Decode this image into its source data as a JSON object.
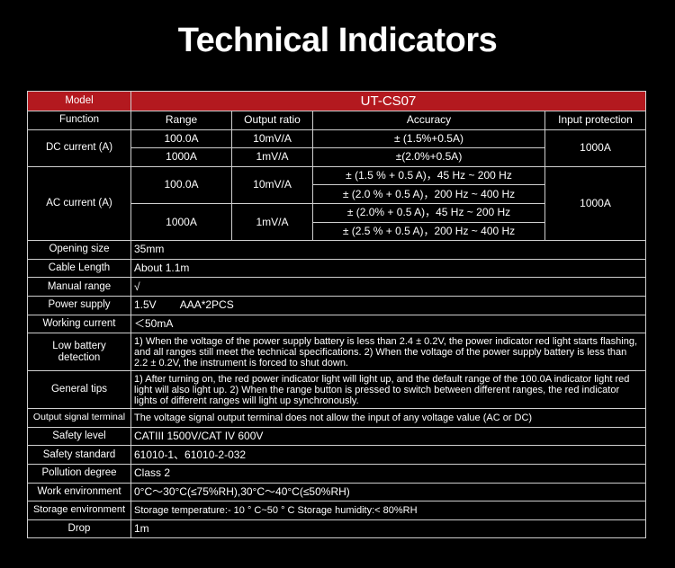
{
  "title": "Technical Indicators",
  "colors": {
    "header_red": "#b3191f",
    "background": "#000000"
  },
  "model": {
    "label": "Model",
    "value": "UT-CS07"
  },
  "columns": [
    "Function",
    "Range",
    "Output ratio",
    "Accuracy",
    "Input protection"
  ],
  "dc": {
    "label": "DC current (A)",
    "protection": "1000A",
    "rows": [
      {
        "range": "100.0A",
        "ratio": "10mV/A",
        "accuracy": "± (1.5%+0.5A)"
      },
      {
        "range": "1000A",
        "ratio": "1mV/A",
        "accuracy": "±(2.0%+0.5A)"
      }
    ]
  },
  "ac": {
    "label": "AC current (A)",
    "protection": "1000A",
    "ranges": [
      {
        "range": "100.0A",
        "ratio": "10mV/A",
        "accuracy": [
          "± (1.5 % + 0.5 A)，45 Hz ~ 200 Hz",
          "± (2.0 % + 0.5 A)，200 Hz ~ 400 Hz"
        ]
      },
      {
        "range": "1000A",
        "ratio": "1mV/A",
        "accuracy": [
          "± (2.0% + 0.5 A)，45 Hz ~ 200 Hz",
          "± (2.5 % + 0.5 A)，200 Hz ~ 400 Hz"
        ]
      }
    ]
  },
  "specs": [
    {
      "label": "Opening size",
      "value": "35mm"
    },
    {
      "label": "Cable Length",
      "value": "About 1.1m"
    },
    {
      "label": "Manual range",
      "value": "√"
    },
    {
      "label": "Power supply",
      "value": "1.5V        AAA*2PCS"
    },
    {
      "label": "Working current",
      "value": "＜50mA"
    },
    {
      "label": "Low battery detection",
      "value": "1) When the voltage of the power supply battery is less than 2.4 ± 0.2V, the power indicator red light starts flashing, and all ranges still meet the technical specifications. 2) When the voltage of the power supply battery is less than 2.2 ± 0.2V, the instrument is forced to shut down."
    },
    {
      "label": "General tips",
      "value": "1) After turning on, the red power indicator light will light up, and the default range of the 100.0A indicator light red light will also light up. 2) When the range button is pressed to switch between different ranges, the red indicator lights of different ranges will light up synchronously."
    },
    {
      "label": "Output signal terminal",
      "value": "The voltage signal output terminal does not allow the input of any voltage value (AC or DC)"
    },
    {
      "label": "Safety level",
      "value": "CATIII 1500V/CAT IV 600V"
    },
    {
      "label": "Safety standard",
      "value": "61010-1、61010-2-032"
    },
    {
      "label": "Pollution degree",
      "value": "Class 2"
    },
    {
      "label": "Work environment",
      "value": "0°C～30°C(≤75%RH),30°C～40°C(≤50%RH)"
    },
    {
      "label": "Storage environment",
      "value": "Storage temperature:- 10 ° C~50 ° C Storage humidity:< 80%RH"
    },
    {
      "label": "Drop",
      "value": "1m"
    }
  ]
}
